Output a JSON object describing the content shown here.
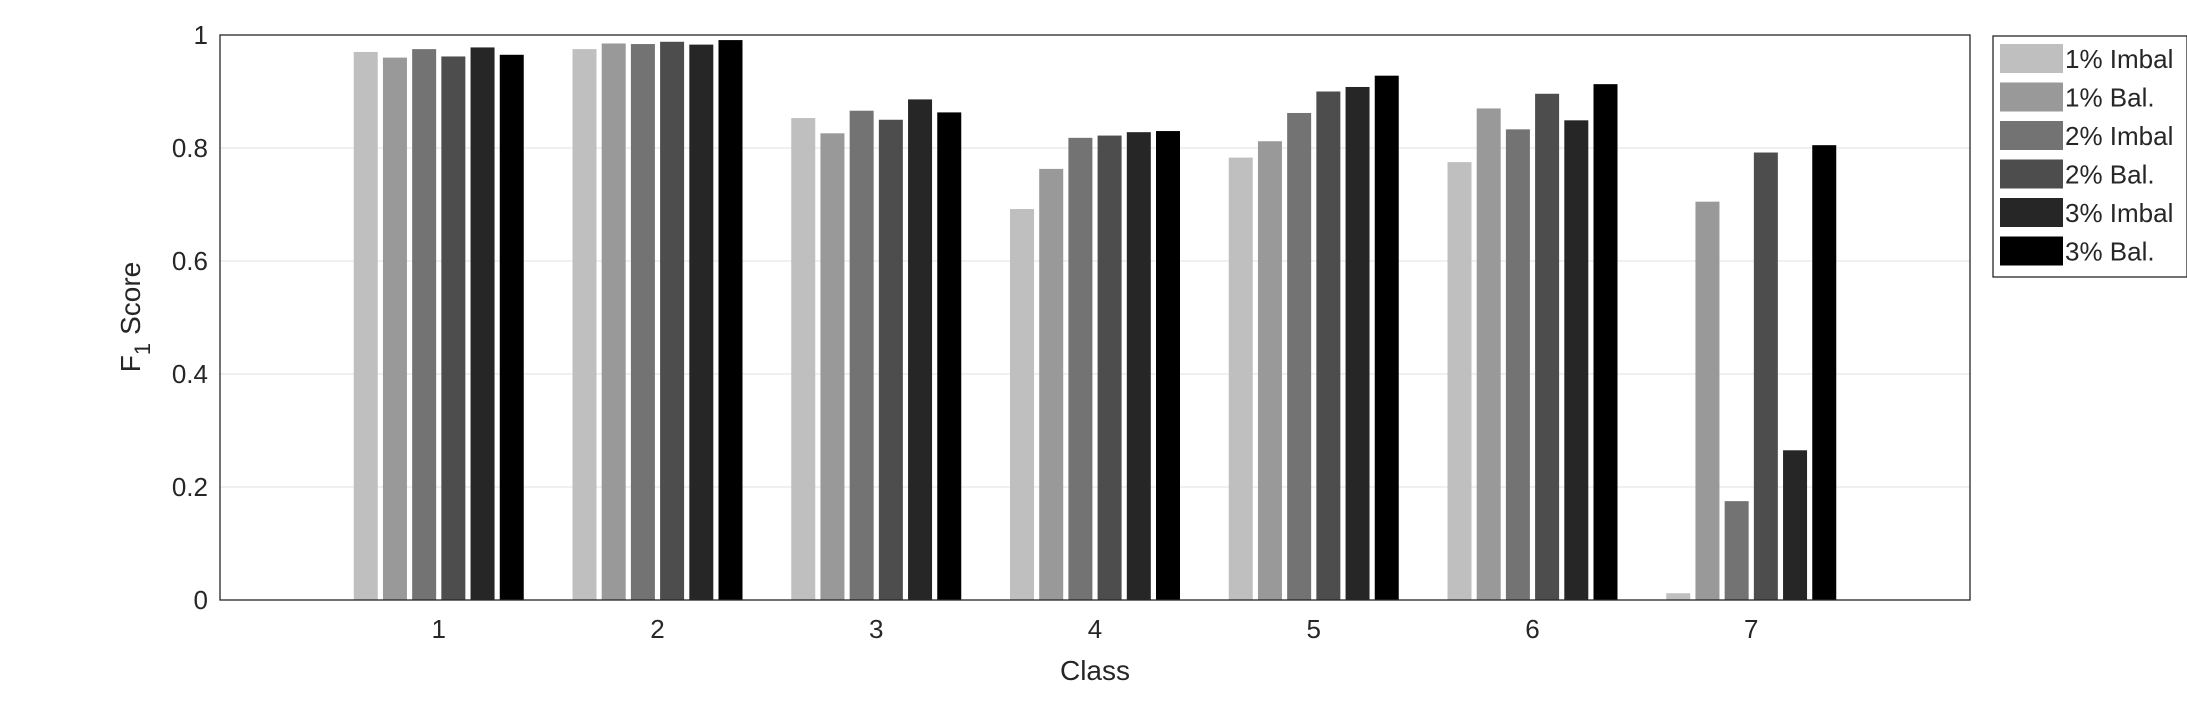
{
  "chart_data": {
    "type": "bar",
    "xlabel": "Class",
    "ylabel": "Score",
    "ylabel_prefix": "F",
    "ylabel_subscript": "1",
    "categories": [
      "1",
      "2",
      "3",
      "4",
      "5",
      "6",
      "7"
    ],
    "ylim": [
      0,
      1
    ],
    "yticks": [
      "0",
      "0.2",
      "0.4",
      "0.6",
      "0.8",
      "1"
    ],
    "grid": "horizontal",
    "legend_position": "right-top outside",
    "series": [
      {
        "name": "1% Imbal",
        "color": "#bfbfbf",
        "values": [
          0.97,
          0.975,
          0.853,
          0.692,
          0.783,
          0.775,
          0.012
        ]
      },
      {
        "name": "1% Bal.",
        "color": "#999999",
        "values": [
          0.96,
          0.985,
          0.826,
          0.763,
          0.812,
          0.87,
          0.705
        ]
      },
      {
        "name": "2% Imbal",
        "color": "#737373",
        "values": [
          0.975,
          0.984,
          0.866,
          0.818,
          0.862,
          0.833,
          0.175
        ]
      },
      {
        "name": "2% Bal.",
        "color": "#4d4d4d",
        "values": [
          0.962,
          0.988,
          0.85,
          0.822,
          0.9,
          0.896,
          0.792
        ]
      },
      {
        "name": "3% Imbal",
        "color": "#262626",
        "values": [
          0.978,
          0.983,
          0.886,
          0.828,
          0.908,
          0.849,
          0.265
        ]
      },
      {
        "name": "3% Bal.",
        "color": "#000000",
        "values": [
          0.965,
          0.991,
          0.863,
          0.83,
          0.928,
          0.913,
          0.805
        ]
      }
    ]
  }
}
